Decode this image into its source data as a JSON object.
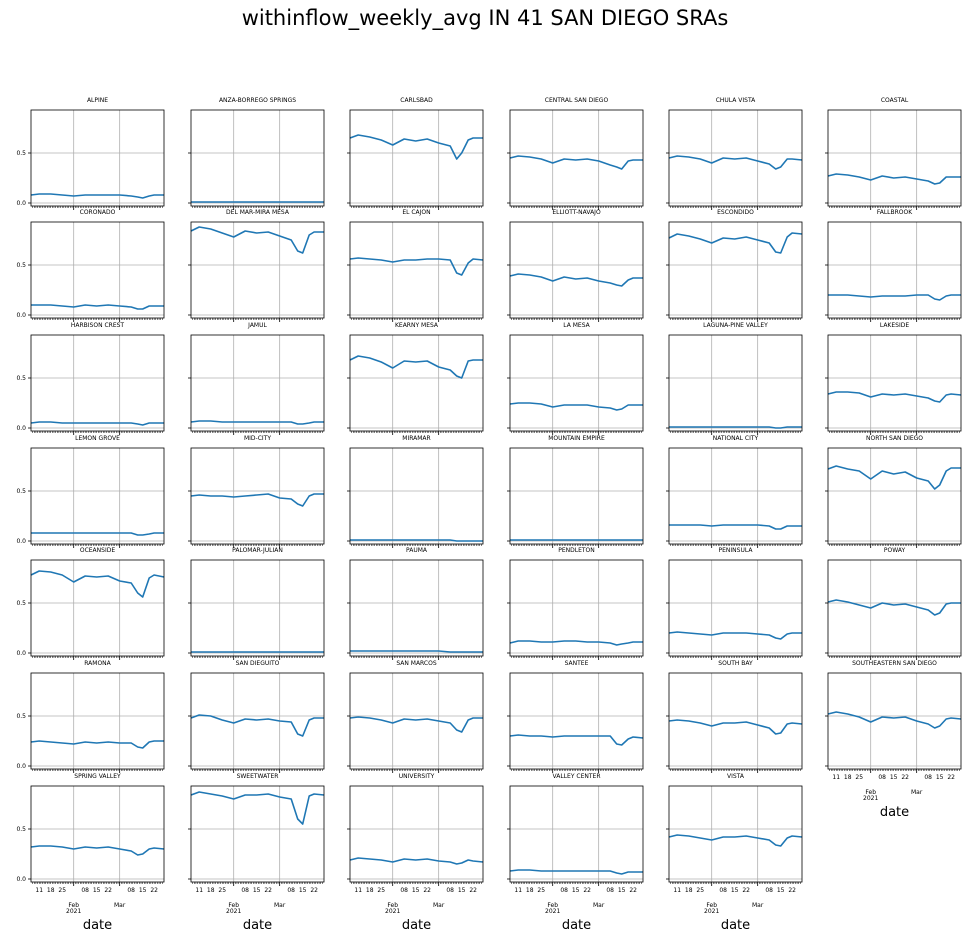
{
  "title": "withinflow_weekly_avg IN 41 SAN DIEGO SRAs",
  "x_axis": {
    "label": "date",
    "minor_tick_labels": [
      "11",
      "18",
      "25",
      "08",
      "15",
      "22",
      "08",
      "15",
      "22"
    ],
    "major_tick_labels": [
      "Feb\n2021",
      "Mar"
    ]
  },
  "y_axis": {
    "tick_labels": [
      "0.0",
      "0.5"
    ]
  },
  "colors": {
    "line": "#1f77b4",
    "grid": "#b0b0b0",
    "axes": "#000000"
  },
  "chart_data": {
    "type": "line",
    "layout": "small-multiples 7x6, shared x and y axes",
    "xlim": [
      "2021-01-06",
      "2021-03-28"
    ],
    "ylim": [
      -0.03,
      0.93
    ],
    "x": [
      "2021-01-06",
      "2021-01-11",
      "2021-01-18",
      "2021-01-25",
      "2021-02-01",
      "2021-02-08",
      "2021-02-15",
      "2021-02-22",
      "2021-03-01",
      "2021-03-08",
      "2021-03-12",
      "2021-03-15",
      "2021-03-19",
      "2021-03-22",
      "2021-03-28"
    ],
    "grid": true,
    "series": [
      {
        "name": "ALPINE",
        "values": [
          0.08,
          0.09,
          0.09,
          0.08,
          0.07,
          0.08,
          0.08,
          0.08,
          0.08,
          0.07,
          0.06,
          0.05,
          0.07,
          0.08,
          0.08
        ]
      },
      {
        "name": "ANZA-BORREGO SPRINGS",
        "values": [
          0.01,
          0.01,
          0.01,
          0.01,
          0.01,
          0.01,
          0.01,
          0.01,
          0.01,
          0.01,
          0.01,
          0.01,
          0.01,
          0.01,
          0.01
        ]
      },
      {
        "name": "CARLSBAD",
        "values": [
          0.65,
          0.68,
          0.66,
          0.63,
          0.58,
          0.64,
          0.62,
          0.64,
          0.6,
          0.57,
          0.44,
          0.5,
          0.63,
          0.65,
          0.65
        ]
      },
      {
        "name": "CENTRAL SAN DIEGO",
        "values": [
          0.45,
          0.47,
          0.46,
          0.44,
          0.4,
          0.44,
          0.43,
          0.44,
          0.42,
          0.38,
          0.36,
          0.34,
          0.42,
          0.43,
          0.43
        ]
      },
      {
        "name": "CHULA VISTA",
        "values": [
          0.45,
          0.47,
          0.46,
          0.44,
          0.4,
          0.45,
          0.44,
          0.45,
          0.42,
          0.39,
          0.34,
          0.36,
          0.44,
          0.44,
          0.43
        ]
      },
      {
        "name": "COASTAL",
        "values": [
          0.27,
          0.29,
          0.28,
          0.26,
          0.23,
          0.27,
          0.25,
          0.26,
          0.24,
          0.22,
          0.19,
          0.2,
          0.26,
          0.26,
          0.26
        ]
      },
      {
        "name": "CORONADO",
        "values": [
          0.1,
          0.1,
          0.1,
          0.09,
          0.08,
          0.1,
          0.09,
          0.1,
          0.09,
          0.08,
          0.06,
          0.06,
          0.09,
          0.09,
          0.09
        ]
      },
      {
        "name": "DEL MAR-MIRA MESA",
        "values": [
          0.84,
          0.88,
          0.86,
          0.82,
          0.78,
          0.84,
          0.82,
          0.83,
          0.79,
          0.75,
          0.64,
          0.62,
          0.8,
          0.83,
          0.83
        ]
      },
      {
        "name": "EL CAJON",
        "values": [
          0.56,
          0.57,
          0.56,
          0.55,
          0.53,
          0.55,
          0.55,
          0.56,
          0.56,
          0.55,
          0.42,
          0.4,
          0.52,
          0.56,
          0.55
        ]
      },
      {
        "name": "ELLIOTT-NAVAJO",
        "values": [
          0.39,
          0.41,
          0.4,
          0.38,
          0.34,
          0.38,
          0.36,
          0.37,
          0.34,
          0.32,
          0.3,
          0.29,
          0.35,
          0.37,
          0.37
        ]
      },
      {
        "name": "ESCONDIDO",
        "values": [
          0.77,
          0.81,
          0.79,
          0.76,
          0.72,
          0.77,
          0.76,
          0.78,
          0.75,
          0.72,
          0.63,
          0.62,
          0.78,
          0.82,
          0.81
        ]
      },
      {
        "name": "FALLBROOK",
        "values": [
          0.2,
          0.2,
          0.2,
          0.19,
          0.18,
          0.19,
          0.19,
          0.19,
          0.2,
          0.2,
          0.16,
          0.15,
          0.19,
          0.2,
          0.2
        ]
      },
      {
        "name": "HARBISON CREST",
        "values": [
          0.05,
          0.06,
          0.06,
          0.05,
          0.05,
          0.05,
          0.05,
          0.05,
          0.05,
          0.05,
          0.04,
          0.03,
          0.05,
          0.05,
          0.05
        ]
      },
      {
        "name": "JAMUL",
        "values": [
          0.06,
          0.07,
          0.07,
          0.06,
          0.06,
          0.06,
          0.06,
          0.06,
          0.06,
          0.06,
          0.04,
          0.04,
          0.05,
          0.06,
          0.06
        ]
      },
      {
        "name": "KEARNY MESA",
        "values": [
          0.68,
          0.72,
          0.7,
          0.66,
          0.6,
          0.67,
          0.66,
          0.67,
          0.61,
          0.58,
          0.52,
          0.5,
          0.67,
          0.68,
          0.68
        ]
      },
      {
        "name": "LA MESA",
        "values": [
          0.24,
          0.25,
          0.25,
          0.24,
          0.21,
          0.23,
          0.23,
          0.23,
          0.21,
          0.2,
          0.18,
          0.19,
          0.23,
          0.23,
          0.23
        ]
      },
      {
        "name": "LAGUNA-PINE VALLEY",
        "values": [
          0.01,
          0.01,
          0.01,
          0.01,
          0.01,
          0.01,
          0.01,
          0.01,
          0.01,
          0.01,
          0.0,
          0.0,
          0.01,
          0.01,
          0.01
        ]
      },
      {
        "name": "LAKESIDE",
        "values": [
          0.34,
          0.36,
          0.36,
          0.35,
          0.31,
          0.34,
          0.33,
          0.34,
          0.32,
          0.3,
          0.27,
          0.26,
          0.33,
          0.34,
          0.33
        ]
      },
      {
        "name": "LEMON GROVE",
        "values": [
          0.08,
          0.08,
          0.08,
          0.08,
          0.08,
          0.08,
          0.08,
          0.08,
          0.08,
          0.08,
          0.06,
          0.06,
          0.07,
          0.08,
          0.08
        ]
      },
      {
        "name": "MID-CITY",
        "values": [
          0.45,
          0.46,
          0.45,
          0.45,
          0.44,
          0.45,
          0.46,
          0.47,
          0.43,
          0.42,
          0.37,
          0.35,
          0.45,
          0.47,
          0.47
        ]
      },
      {
        "name": "MIRAMAR",
        "values": [
          0.01,
          0.01,
          0.01,
          0.01,
          0.01,
          0.01,
          0.01,
          0.01,
          0.01,
          0.01,
          0.0,
          0.0,
          0.0,
          0.0,
          0.0
        ]
      },
      {
        "name": "MOUNTAIN EMPIRE",
        "values": [
          0.01,
          0.01,
          0.01,
          0.01,
          0.01,
          0.01,
          0.01,
          0.01,
          0.01,
          0.01,
          0.01,
          0.01,
          0.01,
          0.01,
          0.01
        ]
      },
      {
        "name": "NATIONAL CITY",
        "values": [
          0.16,
          0.16,
          0.16,
          0.16,
          0.15,
          0.16,
          0.16,
          0.16,
          0.16,
          0.15,
          0.12,
          0.12,
          0.15,
          0.15,
          0.15
        ]
      },
      {
        "name": "NORTH SAN DIEGO",
        "values": [
          0.72,
          0.75,
          0.72,
          0.7,
          0.62,
          0.7,
          0.67,
          0.69,
          0.63,
          0.6,
          0.52,
          0.56,
          0.7,
          0.73,
          0.73
        ]
      },
      {
        "name": "OCEANSIDE",
        "values": [
          0.78,
          0.82,
          0.81,
          0.78,
          0.71,
          0.77,
          0.76,
          0.77,
          0.72,
          0.7,
          0.6,
          0.56,
          0.75,
          0.78,
          0.76
        ]
      },
      {
        "name": "PALOMAR-JULIAN",
        "values": [
          0.01,
          0.01,
          0.01,
          0.01,
          0.01,
          0.01,
          0.01,
          0.01,
          0.01,
          0.01,
          0.01,
          0.01,
          0.01,
          0.01,
          0.01
        ]
      },
      {
        "name": "PAUMA",
        "values": [
          0.02,
          0.02,
          0.02,
          0.02,
          0.02,
          0.02,
          0.02,
          0.02,
          0.02,
          0.01,
          0.01,
          0.01,
          0.01,
          0.01,
          0.01
        ]
      },
      {
        "name": "PENDLETON",
        "values": [
          0.1,
          0.12,
          0.12,
          0.11,
          0.11,
          0.12,
          0.12,
          0.11,
          0.11,
          0.1,
          0.08,
          0.09,
          0.1,
          0.11,
          0.11
        ]
      },
      {
        "name": "PENINSULA",
        "values": [
          0.2,
          0.21,
          0.2,
          0.19,
          0.18,
          0.2,
          0.2,
          0.2,
          0.19,
          0.18,
          0.15,
          0.14,
          0.19,
          0.2,
          0.2
        ]
      },
      {
        "name": "POWAY",
        "values": [
          0.51,
          0.53,
          0.51,
          0.48,
          0.45,
          0.5,
          0.48,
          0.49,
          0.46,
          0.43,
          0.38,
          0.4,
          0.49,
          0.5,
          0.5
        ]
      },
      {
        "name": "RAMONA",
        "values": [
          0.24,
          0.25,
          0.24,
          0.23,
          0.22,
          0.24,
          0.23,
          0.24,
          0.23,
          0.23,
          0.19,
          0.18,
          0.24,
          0.25,
          0.25
        ]
      },
      {
        "name": "SAN DIEGUITO",
        "values": [
          0.48,
          0.51,
          0.5,
          0.46,
          0.43,
          0.47,
          0.46,
          0.47,
          0.45,
          0.44,
          0.32,
          0.3,
          0.46,
          0.48,
          0.48
        ]
      },
      {
        "name": "SAN MARCOS",
        "values": [
          0.48,
          0.49,
          0.48,
          0.46,
          0.43,
          0.47,
          0.46,
          0.47,
          0.45,
          0.43,
          0.36,
          0.34,
          0.46,
          0.48,
          0.48
        ]
      },
      {
        "name": "SANTEE",
        "values": [
          0.3,
          0.31,
          0.3,
          0.3,
          0.29,
          0.3,
          0.3,
          0.3,
          0.3,
          0.3,
          0.22,
          0.21,
          0.27,
          0.29,
          0.28
        ]
      },
      {
        "name": "SOUTH BAY",
        "values": [
          0.45,
          0.46,
          0.45,
          0.43,
          0.4,
          0.43,
          0.43,
          0.44,
          0.41,
          0.38,
          0.32,
          0.33,
          0.42,
          0.43,
          0.42
        ]
      },
      {
        "name": "SOUTHEASTERN SAN DIEGO",
        "values": [
          0.52,
          0.54,
          0.52,
          0.49,
          0.44,
          0.49,
          0.48,
          0.49,
          0.45,
          0.42,
          0.38,
          0.4,
          0.47,
          0.48,
          0.47
        ]
      },
      {
        "name": "SPRING VALLEY",
        "values": [
          0.32,
          0.33,
          0.33,
          0.32,
          0.3,
          0.32,
          0.31,
          0.32,
          0.3,
          0.28,
          0.24,
          0.25,
          0.3,
          0.31,
          0.3
        ]
      },
      {
        "name": "SWEETWATER",
        "values": [
          0.84,
          0.87,
          0.85,
          0.83,
          0.8,
          0.84,
          0.84,
          0.85,
          0.82,
          0.8,
          0.6,
          0.55,
          0.83,
          0.85,
          0.84
        ]
      },
      {
        "name": "UNIVERSITY",
        "values": [
          0.19,
          0.21,
          0.2,
          0.19,
          0.17,
          0.2,
          0.19,
          0.2,
          0.18,
          0.17,
          0.15,
          0.16,
          0.19,
          0.18,
          0.17
        ]
      },
      {
        "name": "VALLEY CENTER",
        "values": [
          0.08,
          0.09,
          0.09,
          0.08,
          0.08,
          0.08,
          0.08,
          0.08,
          0.08,
          0.08,
          0.06,
          0.05,
          0.07,
          0.07,
          0.07
        ]
      },
      {
        "name": "VISTA",
        "values": [
          0.42,
          0.44,
          0.43,
          0.41,
          0.39,
          0.42,
          0.42,
          0.43,
          0.41,
          0.39,
          0.34,
          0.33,
          0.41,
          0.43,
          0.42
        ]
      }
    ]
  }
}
